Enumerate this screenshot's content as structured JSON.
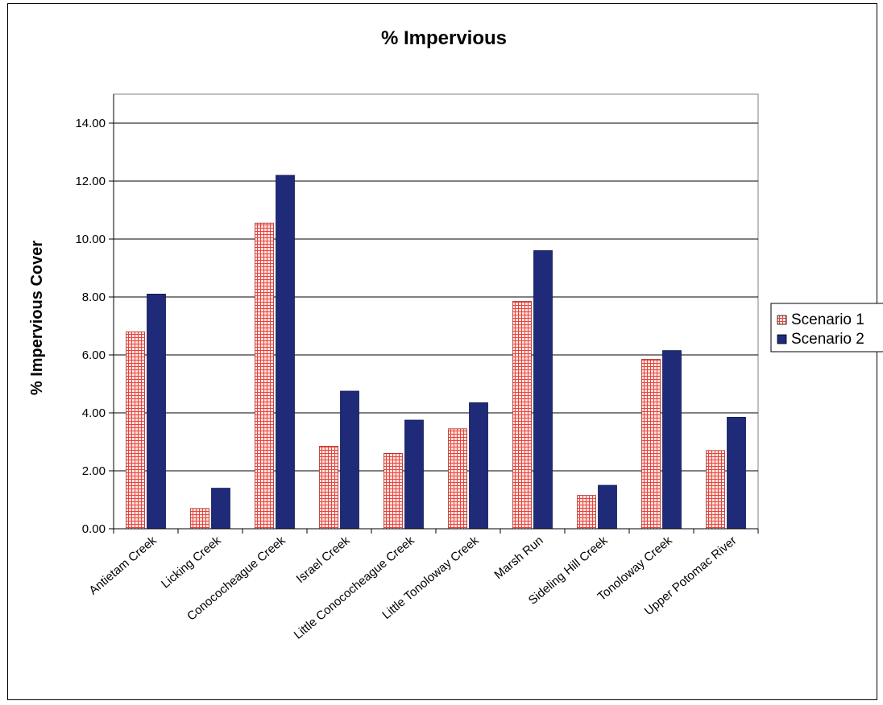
{
  "chart_data": {
    "type": "bar",
    "title": "% Impervious",
    "xlabel": "",
    "ylabel": "% Impervious Cover",
    "ylim": [
      0,
      14
    ],
    "yticks": [
      "0.00",
      "2.00",
      "4.00",
      "6.00",
      "8.00",
      "10.00",
      "12.00",
      "14.00"
    ],
    "grid": true,
    "legend_position": "right",
    "categories": [
      "Antietam Creek",
      "Licking Creek",
      "Conococheague Creek",
      "Israel Creek",
      "Little Conococheague Creek",
      "Little Tonoloway Creek",
      "Marsh Run",
      "Sideling Hill Creek",
      "Tonoloway Creek",
      "Upper Potomac River"
    ],
    "series": [
      {
        "name": "Scenario 1",
        "color": "#e8433a",
        "values": [
          6.8,
          0.7,
          10.55,
          2.85,
          2.6,
          3.45,
          7.85,
          1.15,
          5.85,
          2.7
        ]
      },
      {
        "name": "Scenario 2",
        "color": "#1f2a78",
        "values": [
          8.1,
          1.4,
          12.2,
          4.75,
          3.75,
          4.35,
          9.6,
          1.5,
          6.15,
          3.85
        ]
      }
    ]
  }
}
